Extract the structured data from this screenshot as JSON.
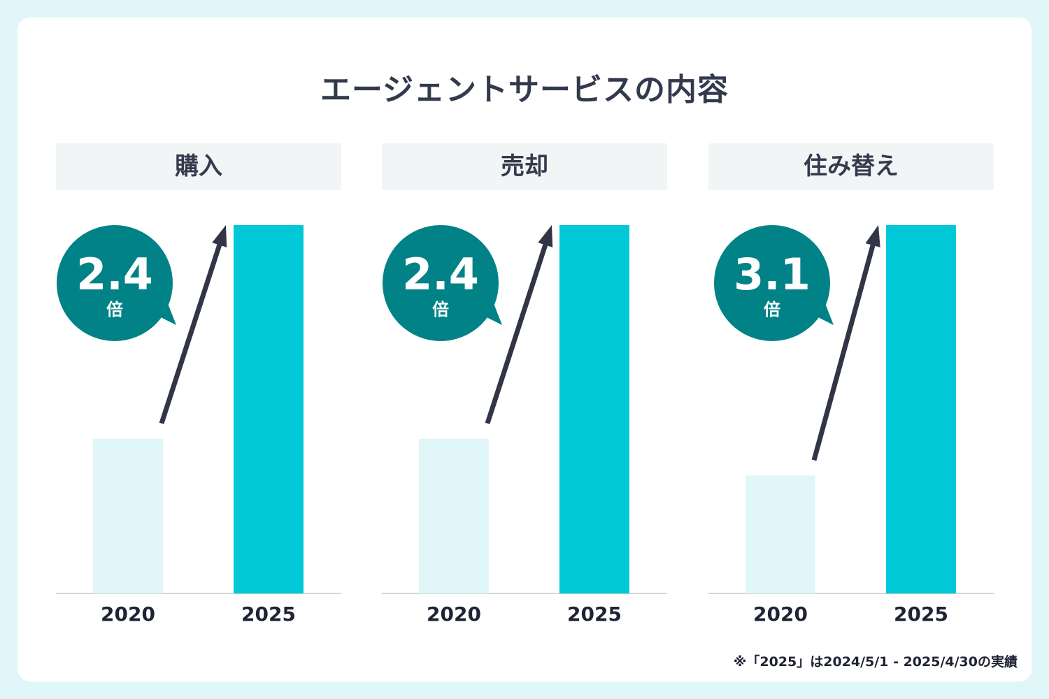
{
  "title": "エージェントサービスの内容",
  "footnote": "※「2025」は2024/5/1 - 2025/4/30の実績",
  "colors": {
    "background": "#e0f6f8",
    "bar_2020": "#e0f6f8",
    "bar_2025": "#00c8d7",
    "bubble": "#008287",
    "arrow": "#323545"
  },
  "chart_data": [
    {
      "type": "bar",
      "title": "購入",
      "categories": [
        "2020",
        "2025"
      ],
      "values": [
        0.42,
        1.0
      ],
      "annotation": {
        "value": "2.4",
        "unit": "倍"
      }
    },
    {
      "type": "bar",
      "title": "売却",
      "categories": [
        "2020",
        "2025"
      ],
      "values": [
        0.42,
        1.0
      ],
      "annotation": {
        "value": "2.4",
        "unit": "倍"
      }
    },
    {
      "type": "bar",
      "title": "住み替え",
      "categories": [
        "2020",
        "2025"
      ],
      "values": [
        0.32,
        1.0
      ],
      "annotation": {
        "value": "3.1",
        "unit": "倍"
      }
    }
  ]
}
